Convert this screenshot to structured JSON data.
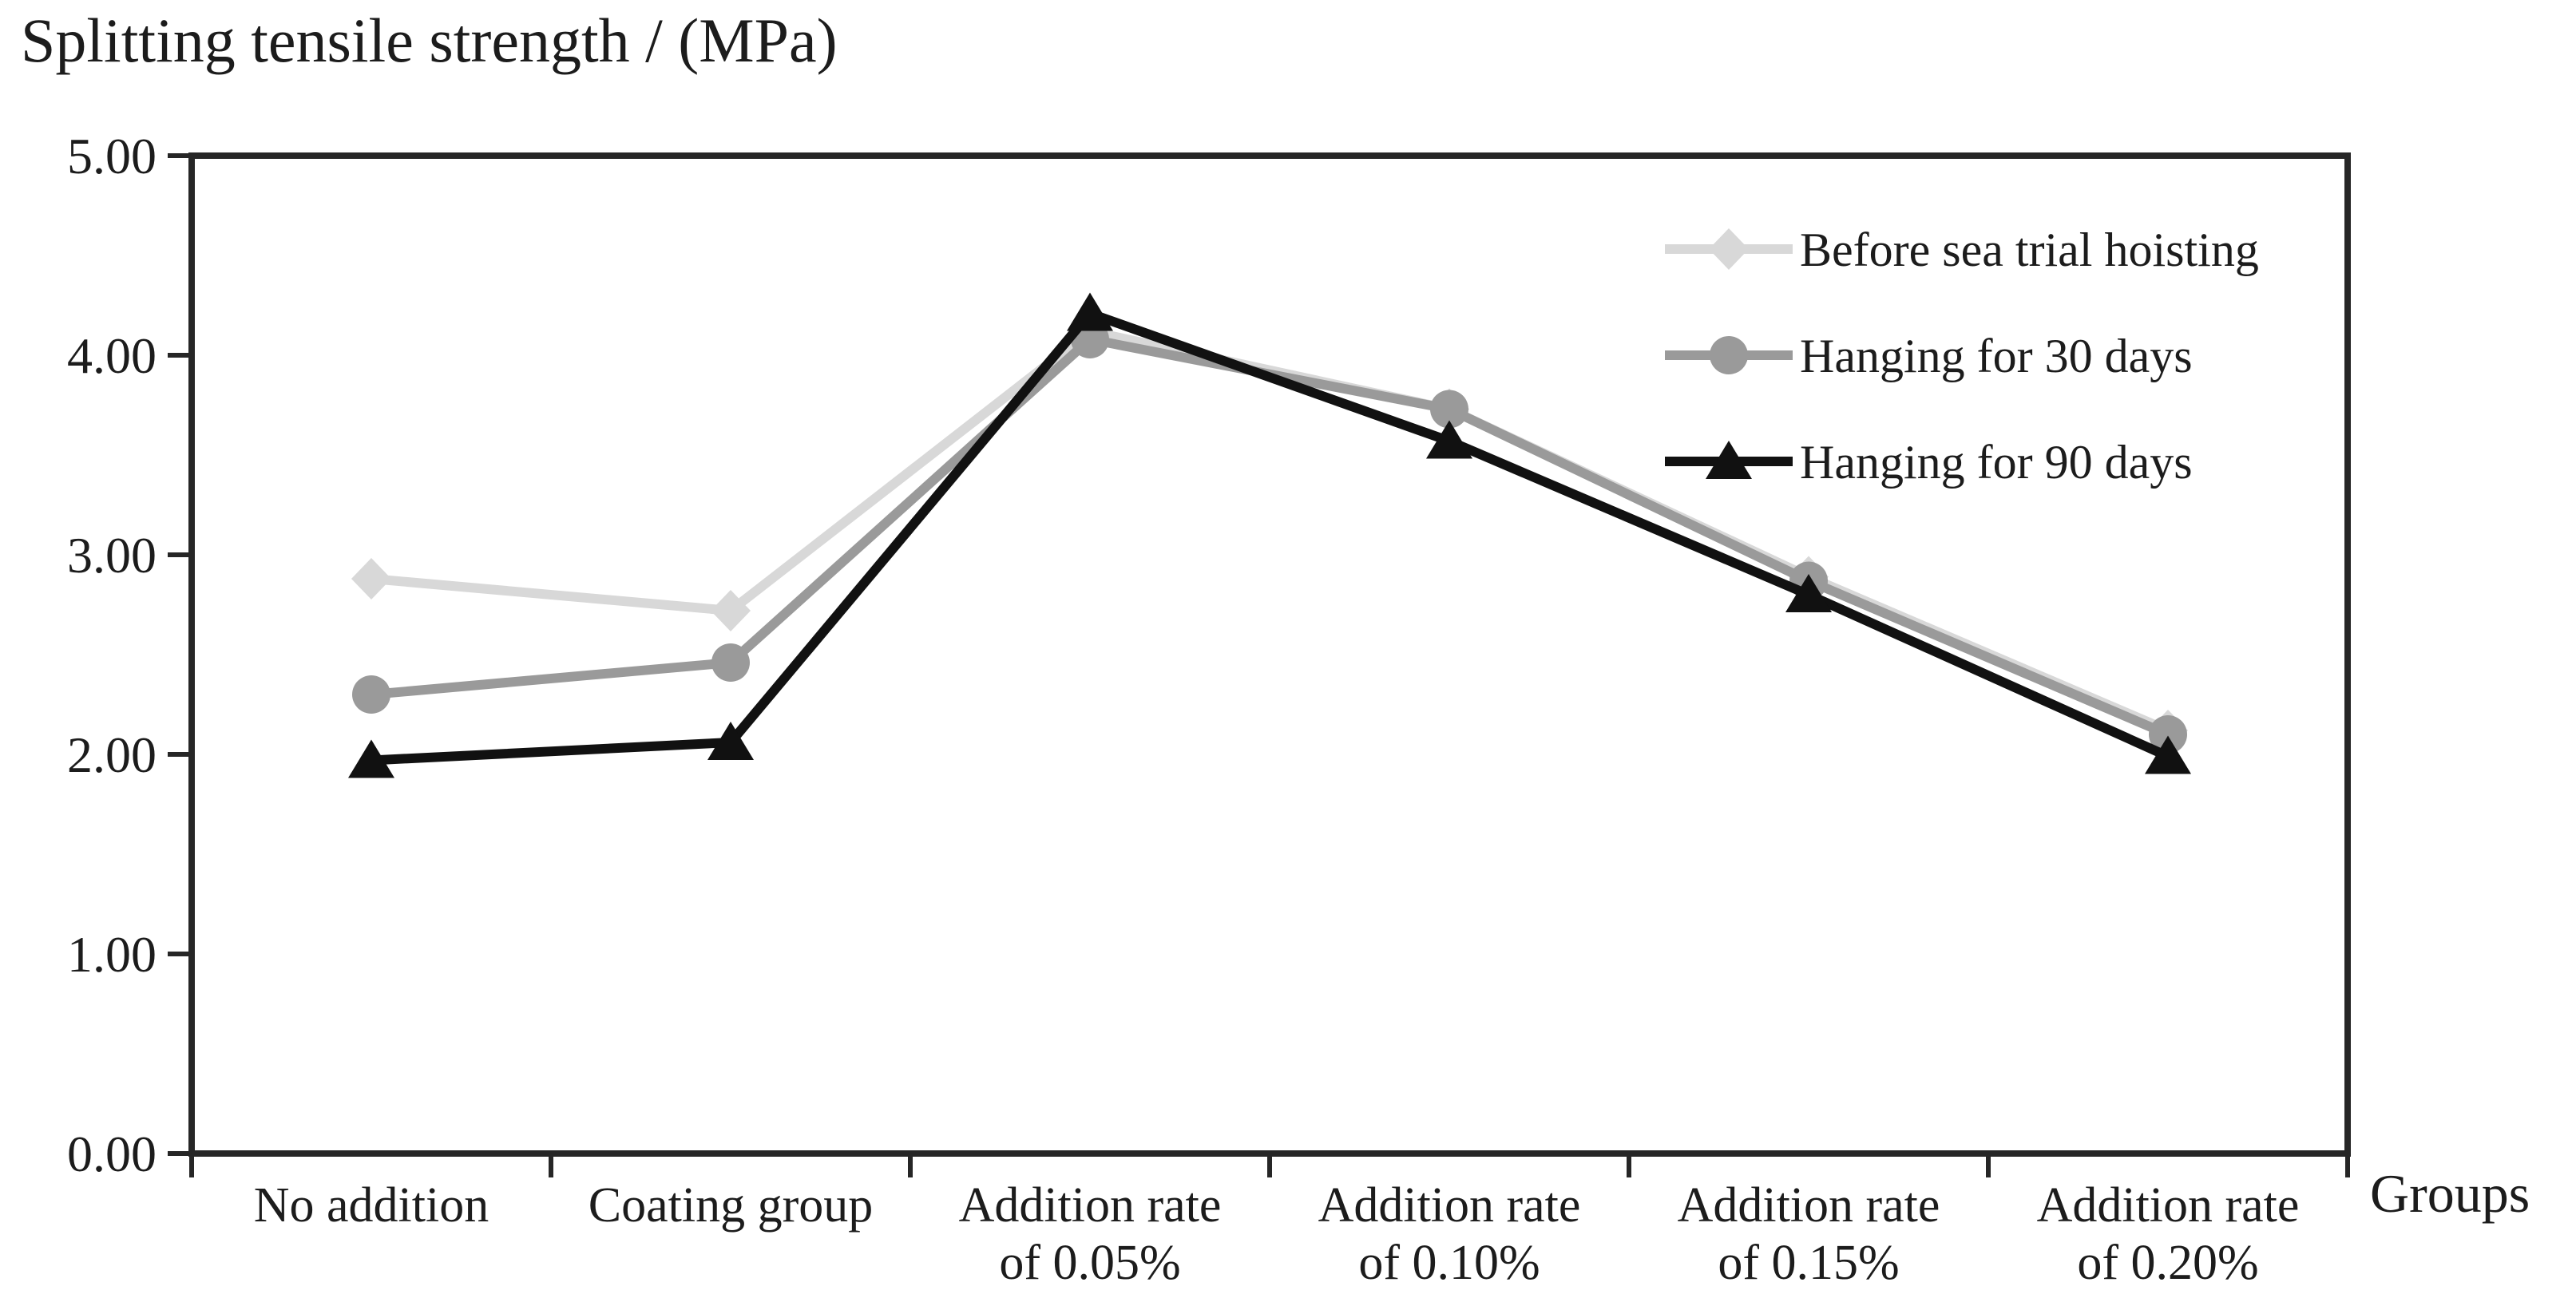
{
  "chart_data": {
    "type": "line",
    "title": "Splitting tensile strength / (MPa)",
    "ylabel": "Splitting tensile strength / (MPa)",
    "xlabel": "Groups",
    "categories": [
      "No addition",
      "Coating group",
      "Addition  rate\nof 0.05%",
      "Addition rate\nof 0.10%",
      "Addition rate\nof 0.15%",
      "Addition rate\nof 0.20%"
    ],
    "series": [
      {
        "name": "Before sea trial hoisting",
        "marker": "diamond",
        "color": "#d8d8d8",
        "values": [
          2.88,
          2.72,
          4.12,
          3.73,
          2.89,
          2.12
        ]
      },
      {
        "name": "Hanging for 30 days",
        "marker": "circle",
        "color": "#9a9a9a",
        "values": [
          2.3,
          2.46,
          4.08,
          3.73,
          2.87,
          2.1
        ]
      },
      {
        "name": "Hanging for 90 days",
        "marker": "triangle",
        "color": "#111111",
        "values": [
          1.97,
          2.06,
          4.21,
          3.57,
          2.8,
          1.99
        ]
      }
    ],
    "ylim": [
      0,
      5
    ],
    "ytick_labels": [
      "0.00",
      "1.00",
      "2.00",
      "3.00",
      "4.00",
      "5.00"
    ],
    "grid": false,
    "legend_position": "inside-top-right",
    "axis_color": "#262626"
  }
}
